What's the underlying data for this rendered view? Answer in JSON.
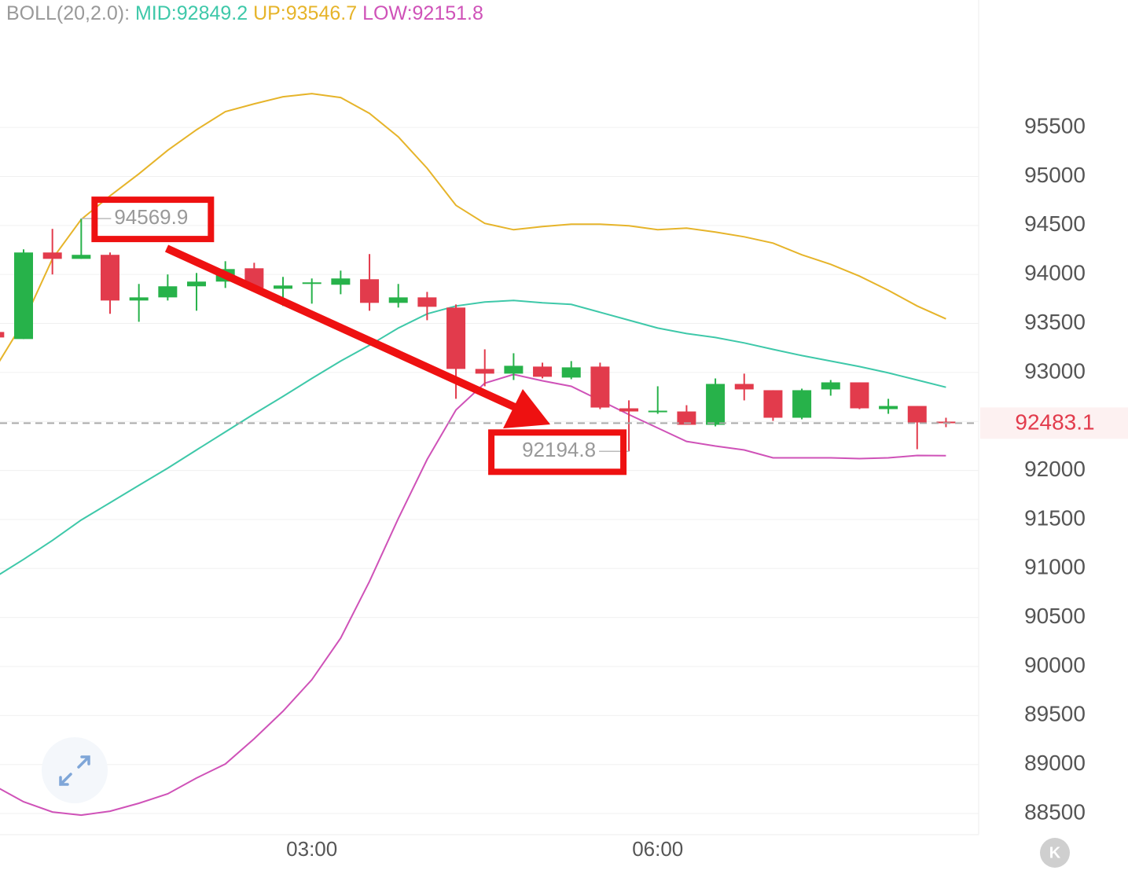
{
  "chart_data": {
    "type": "candlestick",
    "indicator": "BOLL(20,2.0):",
    "categories": [
      null,
      null,
      null,
      null,
      null,
      null,
      null,
      null,
      null,
      null,
      null,
      "03:00",
      null,
      null,
      null,
      null,
      null,
      null,
      null,
      null,
      null,
      null,
      null,
      "06:00",
      null,
      null,
      null,
      null,
      null,
      null,
      null,
      null,
      null,
      null
    ],
    "open": [
      93413,
      93341,
      94224,
      94159,
      94200,
      93734,
      93766,
      93879,
      93927,
      94063,
      93854,
      93903,
      93895,
      93951,
      93710,
      93766,
      93662,
      93036,
      92988,
      93060,
      92948,
      93060,
      92634,
      92594,
      92602,
      92466,
      92883,
      92819,
      92538,
      92827,
      92899,
      92626,
      92658,
      92498
    ],
    "high": [
      93413,
      94256,
      94465,
      94569.9,
      94224,
      93903,
      94000,
      94015,
      94135,
      94119,
      93975,
      93959,
      94039,
      94208,
      93903,
      93822,
      93694,
      93236,
      93196,
      93100,
      93116,
      93100,
      92715,
      92859,
      92666,
      92939,
      92988,
      92819,
      92835,
      92923,
      92899,
      92731,
      92658,
      92538
    ],
    "low": [
      93357,
      93341,
      94000,
      94159,
      93598,
      93517,
      93734,
      93630,
      93862,
      93838,
      93678,
      93702,
      93798,
      93630,
      93662,
      93533,
      92731,
      92859,
      92923,
      92940,
      92931,
      92626,
      92194.8,
      92578,
      92466,
      92450,
      92715,
      92506,
      92522,
      92763,
      92626,
      92578,
      92217,
      92442
    ],
    "close": [
      93357,
      94224,
      94159,
      94200,
      93734,
      93766,
      93879,
      93927,
      94055,
      93862,
      93887,
      93919,
      93959,
      93710,
      93766,
      93670,
      93036,
      92988,
      93068,
      92956,
      93052,
      92642,
      92602,
      92610,
      92466,
      92883,
      92827,
      92538,
      92819,
      92899,
      92634,
      92658,
      92490,
      92483.1
    ],
    "up_color": "#27b24a",
    "down_color": "#e23b4c",
    "series": [
      {
        "name": "MID",
        "label": "MID:92849.2",
        "color": "#3ec8a9",
        "values": [
          90909,
          91093,
          91286,
          91495,
          91671,
          91848,
          92024,
          92209,
          92394,
          92578,
          92755,
          92939,
          93116,
          93277,
          93453,
          93598,
          93678,
          93718,
          93734,
          93710,
          93694,
          93614,
          93533,
          93453,
          93397,
          93357,
          93301,
          93236,
          93172,
          93116,
          93060,
          92996,
          92923,
          92849.2
        ]
      },
      {
        "name": "UP",
        "label": "UP:93546.7",
        "color": "#e6b42a",
        "values": [
          93036,
          93517,
          94159,
          94561,
          94802,
          95026,
          95267,
          95476,
          95661,
          95741,
          95813,
          95845,
          95805,
          95644,
          95404,
          95083,
          94705,
          94521,
          94456,
          94489,
          94513,
          94513,
          94497,
          94456,
          94473,
          94432,
          94384,
          94320,
          94200,
          94103,
          93983,
          93838,
          93678,
          93546.7
        ]
      },
      {
        "name": "LOW",
        "label": "LOW:92151.8",
        "color": "#cf52b8",
        "values": [
          88781,
          88620,
          88516,
          88484,
          88524,
          88605,
          88701,
          88862,
          89006,
          89263,
          89544,
          89865,
          90290,
          90868,
          91510,
          92113,
          92618,
          92891,
          92980,
          92915,
          92859,
          92715,
          92570,
          92434,
          92297,
          92249,
          92209,
          92129,
          92129,
          92129,
          92121,
          92129,
          92153,
          92151.8
        ]
      }
    ],
    "ylim": [
      88300,
      96800
    ],
    "yticks": [
      88500,
      89000,
      89500,
      90000,
      90500,
      91000,
      91500,
      92000,
      92500,
      93000,
      93500,
      94000,
      94500,
      95000,
      95500
    ],
    "grid": true,
    "corner_button": "K"
  }
}
